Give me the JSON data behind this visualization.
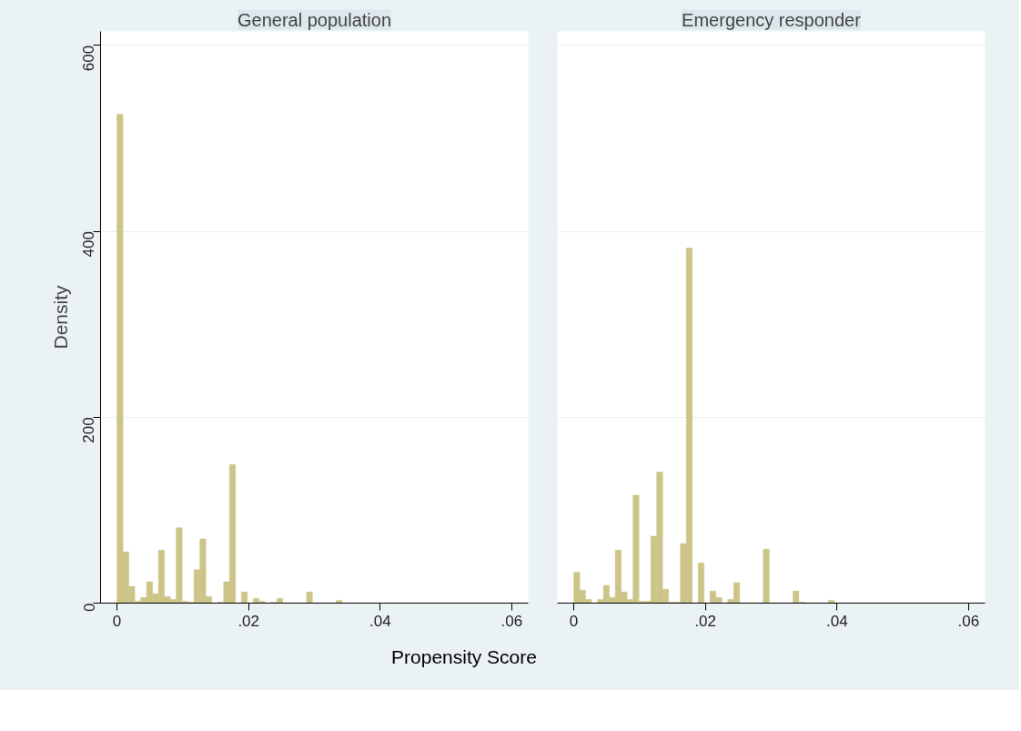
{
  "chart_data": [
    {
      "type": "histogram",
      "title": "General population",
      "ylabel": "Density",
      "xlabel": "Propensity Score",
      "bins": [
        0,
        0.0009,
        0.0018,
        0.0027,
        0.0036,
        0.0045,
        0.0054,
        0.0063,
        0.0072,
        0.0081,
        0.009,
        0.0099,
        0.0108,
        0.0117,
        0.0126,
        0.0135,
        0.0144,
        0.0153,
        0.0162,
        0.0171,
        0.018,
        0.0189,
        0.0198,
        0.0207,
        0.0216,
        0.0225,
        0.0234,
        0.0243,
        0.0252,
        0.0261,
        0.027,
        0.0279,
        0.0288,
        0.0297,
        0.0306,
        0.0315,
        0.0324,
        0.0333,
        0.0342
      ],
      "values": [
        526,
        55,
        18,
        2,
        6,
        23,
        10,
        57,
        7,
        4,
        81,
        2,
        1,
        36,
        69,
        7,
        0,
        1,
        23,
        149,
        0,
        12,
        0,
        5,
        2,
        0,
        1,
        5,
        0,
        0,
        0,
        0,
        12,
        0,
        0,
        0,
        0,
        3
      ],
      "color": "#cdc488",
      "xlim": [
        -0.0025,
        0.0625
      ],
      "ylim": [
        0,
        615
      ],
      "xticks": [
        {
          "value": 0,
          "label": "0"
        },
        {
          "value": 0.02,
          "label": ".02"
        },
        {
          "value": 0.04,
          "label": ".04"
        },
        {
          "value": 0.06,
          "label": ".06"
        }
      ],
      "yticks": [
        0,
        200,
        400,
        600
      ],
      "grid": "y"
    },
    {
      "type": "histogram",
      "title": "Emergency responder",
      "bins": [
        0,
        0.0009,
        0.0018,
        0.0027,
        0.0036,
        0.0045,
        0.0054,
        0.0063,
        0.0072,
        0.0081,
        0.009,
        0.0099,
        0.0108,
        0.0117,
        0.0126,
        0.0135,
        0.0144,
        0.0153,
        0.0162,
        0.0171,
        0.018,
        0.0189,
        0.0198,
        0.0207,
        0.0216,
        0.0225,
        0.0234,
        0.0243,
        0.0252,
        0.0261,
        0.027,
        0.0279,
        0.0288,
        0.0297,
        0.0306,
        0.0315,
        0.0324,
        0.0333,
        0.0342,
        0.0351,
        0.036,
        0.0369,
        0.0378,
        0.0387,
        0.0396
      ],
      "values": [
        33,
        14,
        4,
        0,
        4,
        19,
        6,
        57,
        12,
        4,
        116,
        2,
        2,
        72,
        141,
        15,
        1,
        1,
        64,
        382,
        0,
        43,
        0,
        13,
        6,
        0,
        4,
        22,
        0,
        0,
        0,
        0,
        58,
        0,
        0,
        0,
        0,
        13,
        1,
        0,
        0,
        0,
        0,
        3
      ],
      "color": "#cdc488",
      "xlim": [
        -0.0025,
        0.0625
      ],
      "ylim": [
        0,
        615
      ],
      "xticks": [
        {
          "value": 0,
          "label": "0"
        },
        {
          "value": 0.02,
          "label": ".02"
        },
        {
          "value": 0.04,
          "label": ".04"
        },
        {
          "value": 0.06,
          "label": ".06"
        }
      ],
      "yticks": [
        0,
        200,
        400,
        600
      ],
      "grid": "y",
      "tick_labels": "x"
    }
  ]
}
